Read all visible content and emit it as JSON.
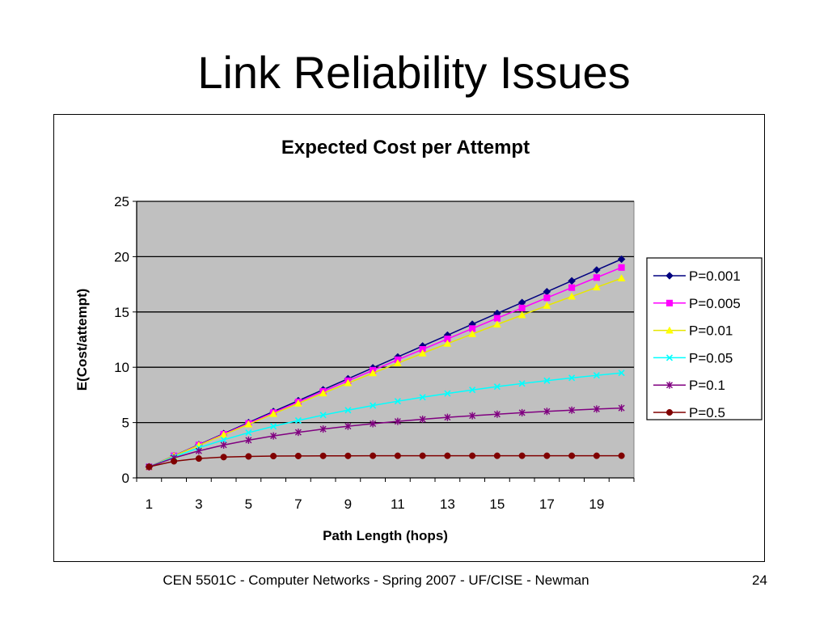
{
  "slide": {
    "title": "Link Reliability Issues",
    "footer": "CEN 5501C - Computer Networks - Spring 2007 - UF/CISE - Newman",
    "page_number": "24"
  },
  "chart_data": {
    "type": "line",
    "title": "Expected Cost per Attempt",
    "xlabel": "Path Length (hops)",
    "ylabel": "E(Cost/attempt)",
    "x": [
      1,
      2,
      3,
      4,
      5,
      6,
      7,
      8,
      9,
      10,
      11,
      12,
      13,
      14,
      15,
      16,
      17,
      18,
      19,
      20
    ],
    "x_ticks": [
      1,
      3,
      5,
      7,
      9,
      11,
      13,
      15,
      17,
      19
    ],
    "xlim": [
      1,
      20
    ],
    "ylim": [
      0,
      25
    ],
    "y_ticks": [
      0,
      5,
      10,
      15,
      20,
      25
    ],
    "grid": "horizontal",
    "plot_background": "#c0c0c0",
    "legend": "right",
    "series": [
      {
        "name": "P=0.001",
        "color": "#000080",
        "marker": "diamond",
        "values": [
          1.0,
          2.0,
          3.0,
          4.0,
          5.0,
          6.0,
          6.98,
          7.97,
          8.96,
          9.95,
          10.93,
          11.92,
          12.9,
          13.89,
          14.87,
          15.85,
          16.83,
          17.81,
          18.79,
          19.77
        ]
      },
      {
        "name": "P=0.005",
        "color": "#ff00ff",
        "marker": "square",
        "values": [
          1.0,
          1.99,
          2.97,
          3.95,
          4.93,
          5.9,
          6.86,
          7.82,
          8.78,
          9.73,
          10.68,
          11.62,
          12.56,
          13.5,
          14.43,
          15.36,
          16.28,
          17.2,
          18.11,
          19.02
        ]
      },
      {
        "name": "P=0.01",
        "color": "#ffff00",
        "marker": "triangle",
        "values": [
          1.0,
          1.98,
          2.94,
          3.9,
          4.85,
          5.79,
          6.73,
          7.65,
          8.57,
          9.47,
          10.37,
          11.26,
          12.14,
          13.01,
          13.87,
          14.72,
          15.57,
          16.4,
          17.23,
          18.05
        ]
      },
      {
        "name": "P=0.05",
        "color": "#00ffff",
        "marker": "x",
        "values": [
          1.0,
          1.9,
          2.72,
          3.44,
          4.09,
          4.66,
          5.19,
          5.68,
          6.12,
          6.54,
          6.93,
          7.29,
          7.63,
          7.95,
          8.25,
          8.53,
          8.79,
          9.04,
          9.27,
          9.49
        ]
      },
      {
        "name": "P=0.1",
        "color": "#800080",
        "marker": "star",
        "values": [
          1.0,
          1.81,
          2.44,
          2.97,
          3.41,
          3.79,
          4.12,
          4.41,
          4.67,
          4.9,
          5.11,
          5.3,
          5.47,
          5.62,
          5.76,
          5.89,
          6.01,
          6.12,
          6.22,
          6.31
        ]
      },
      {
        "name": "P=0.5",
        "color": "#800000",
        "marker": "circle",
        "values": [
          1.0,
          1.5,
          1.75,
          1.88,
          1.94,
          1.97,
          1.98,
          1.99,
          1.99,
          2.0,
          2.0,
          2.0,
          2.0,
          2.0,
          2.0,
          2.0,
          2.0,
          2.0,
          2.0,
          2.0
        ]
      }
    ]
  }
}
